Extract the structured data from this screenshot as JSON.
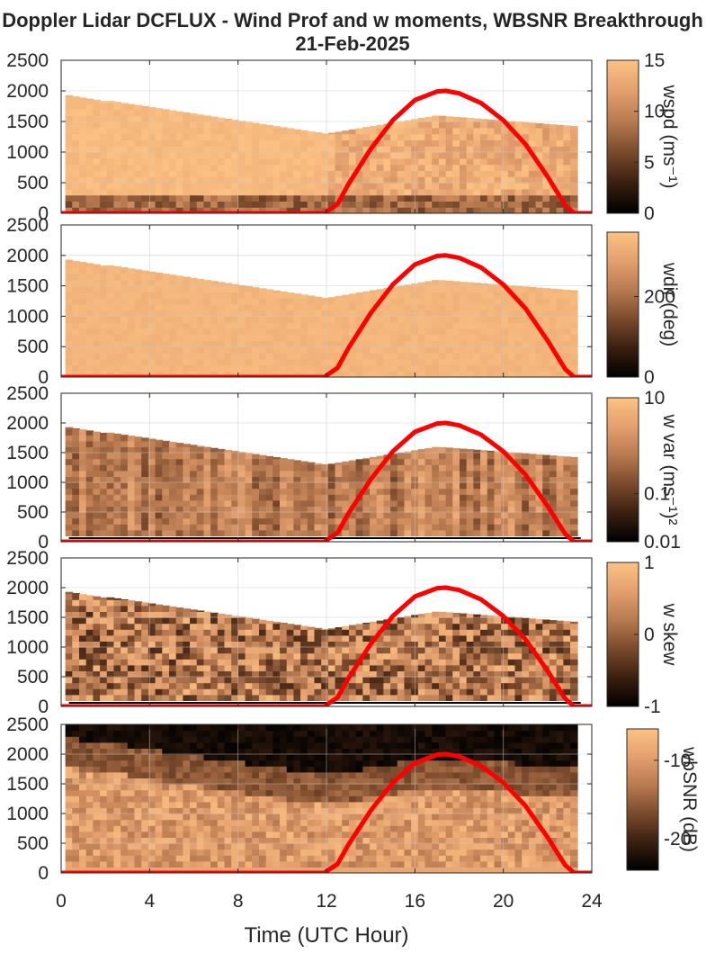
{
  "figure": {
    "title_line1": "Doppler Lidar DCFLUX - Wind Prof and w moments, WBSNR Breakthrough",
    "title_line2": "21-Feb-2025",
    "xlabel": "Time (UTC Hour)"
  },
  "colormap": [
    "#000000",
    "#3a1f10",
    "#7a4a2c",
    "#b87a50",
    "#e39f6e",
    "#fcc283"
  ],
  "overlay_color": "#ff0000",
  "chart_data": {
    "type": "heatmap",
    "x_ticks": [
      "0",
      "4",
      "8",
      "12",
      "16",
      "20",
      "24"
    ],
    "xlim": [
      0,
      24
    ],
    "y_ticks": [
      "0",
      "500",
      "1000",
      "1500",
      "2000",
      "2500"
    ],
    "ylim": [
      0,
      2500
    ],
    "grid": true,
    "panels": [
      {
        "colorbar_label": "wspd (ms⁻¹)",
        "cticks": [
          "0",
          "5",
          "10",
          "15"
        ],
        "clim": [
          0,
          15
        ]
      },
      {
        "colorbar_label": "wdir (deg)",
        "cticks": [
          "0",
          "200"
        ],
        "clim": [
          0,
          360
        ]
      },
      {
        "colorbar_label": "w var (ms⁻¹)²",
        "cticks": [
          "0.01",
          "0.1",
          "10"
        ],
        "clim": [
          0.01,
          10
        ],
        "log_scale": true
      },
      {
        "colorbar_label": "w skew",
        "cticks": [
          "-1",
          "0",
          "1"
        ],
        "clim": [
          -1,
          1
        ]
      },
      {
        "colorbar_label": "wbSNR (dB)",
        "cticks": [
          "-20",
          "-10"
        ],
        "clim": [
          -24,
          -6
        ]
      }
    ],
    "overlay_curve": {
      "x": [
        0,
        11.9,
        12.5,
        13,
        14,
        15,
        16,
        17,
        17.4,
        18,
        19,
        20,
        21,
        22,
        22.8,
        23.2,
        24
      ],
      "y": [
        0,
        0,
        150,
        480,
        1050,
        1520,
        1850,
        1990,
        2000,
        1960,
        1800,
        1520,
        1130,
        600,
        130,
        0,
        0
      ]
    }
  }
}
